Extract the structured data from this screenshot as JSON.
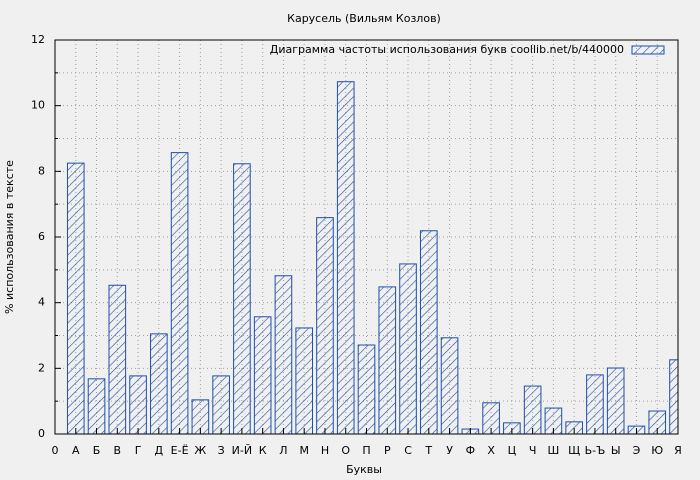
{
  "chart_data": {
    "type": "bar",
    "title": "Карусель (Вильям Козлов)",
    "xlabel": "Буквы",
    "ylabel": "% использования в тексте",
    "x": [
      1,
      2,
      3,
      4,
      5,
      6,
      7,
      8,
      9,
      10,
      11,
      12,
      13,
      14,
      15,
      16,
      17,
      18,
      19,
      20,
      21,
      22,
      23,
      24,
      25,
      26,
      27,
      28,
      29,
      30
    ],
    "series": [
      {
        "name": "Диаграмма частоты использования букв  coollib.net/b/440000",
        "color": "#1f4fa8",
        "values": [
          8.25,
          1.68,
          4.53,
          1.77,
          3.05,
          8.57,
          1.04,
          1.77,
          8.23,
          3.57,
          4.82,
          3.23,
          6.59,
          10.73,
          2.71,
          4.48,
          5.18,
          6.19,
          2.93,
          0.15,
          0.95,
          0.34,
          1.46,
          0.79,
          0.37,
          1.8,
          2.01,
          0.24,
          0.7,
          2.26
        ]
      }
    ],
    "xlim": [
      0,
      30
    ],
    "xticks": [
      0,
      {
        "value": 1,
        "label": "А"
      },
      {
        "value": 2,
        "label": "Б"
      },
      {
        "value": 3,
        "label": "В"
      },
      {
        "value": 4,
        "label": "Г"
      },
      {
        "value": 5,
        "label": "Д"
      },
      {
        "value": 6,
        "label": "Е-Ё"
      },
      {
        "value": 7,
        "label": "Ж"
      },
      {
        "value": 8,
        "label": "З"
      },
      {
        "value": 9,
        "label": "И-Й"
      },
      {
        "value": 10,
        "label": "К"
      },
      {
        "value": 11,
        "label": "Л"
      },
      {
        "value": 12,
        "label": "М"
      },
      {
        "value": 13,
        "label": "Н"
      },
      {
        "value": 14,
        "label": "О"
      },
      {
        "value": 15,
        "label": "П"
      },
      {
        "value": 16,
        "label": "Р"
      },
      {
        "value": 17,
        "label": "С"
      },
      {
        "value": 18,
        "label": "Т"
      },
      {
        "value": 19,
        "label": "У"
      },
      {
        "value": 20,
        "label": "Ф"
      },
      {
        "value": 21,
        "label": "Х"
      },
      {
        "value": 22,
        "label": "Ц"
      },
      {
        "value": 23,
        "label": "Ч"
      },
      {
        "value": 24,
        "label": "Ш"
      },
      {
        "value": 25,
        "label": "Щ"
      },
      {
        "value": 26,
        "label": "Ь-Ъ"
      },
      {
        "value": 27,
        "label": "Ы"
      },
      {
        "value": 28,
        "label": "Э"
      },
      {
        "value": 29,
        "label": "Ю"
      },
      {
        "value": 30,
        "label": "Я"
      }
    ],
    "ylim": [
      0,
      12
    ],
    "yticks": [
      0,
      2,
      4,
      6,
      8,
      10,
      12
    ],
    "y_minor_ticks": [
      1,
      3,
      5,
      7,
      9,
      11
    ],
    "grid": true,
    "legend_position": "top-right"
  }
}
